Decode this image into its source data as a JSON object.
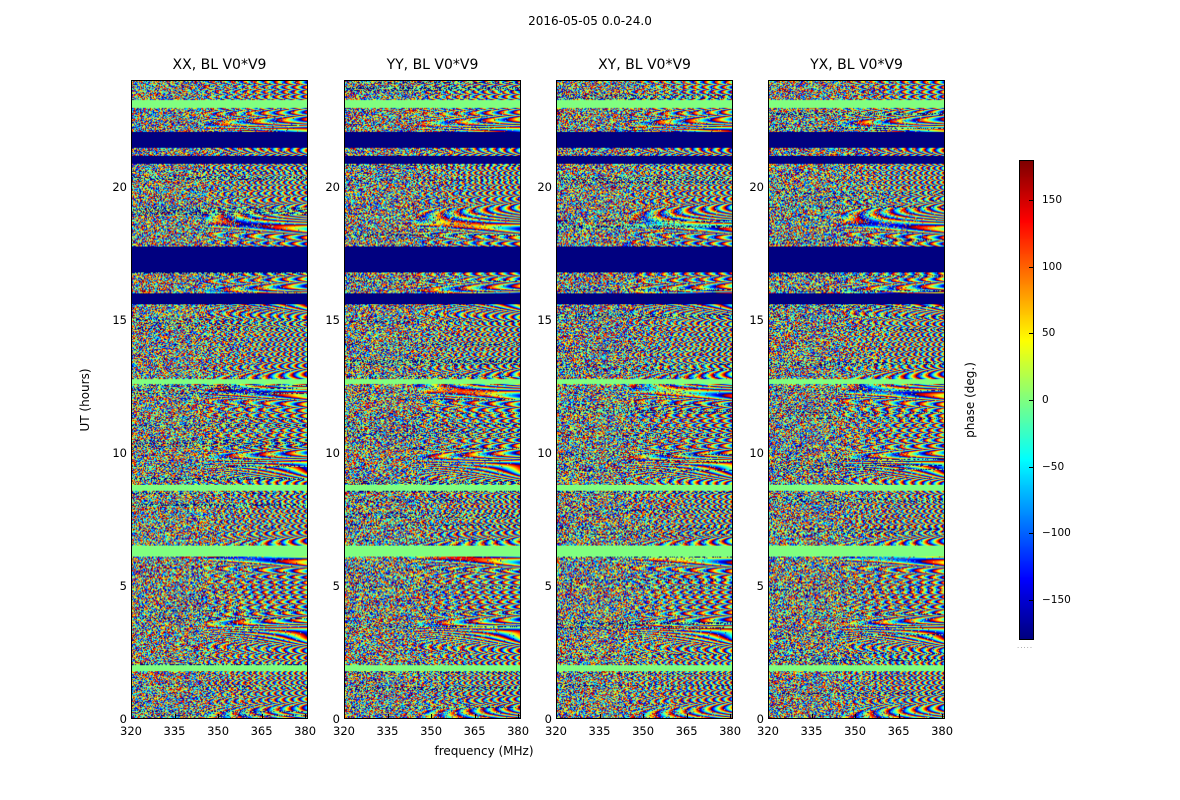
{
  "figure": {
    "suptitle": "2016-05-05 0.0-24.0",
    "colorbar_dots": "....."
  },
  "chart_data": {
    "type": "heatmap",
    "title": "2016-05-05 0.0-24.0",
    "xlabel": "frequency (MHz)",
    "ylabel": "UT (hours)",
    "xlim": [
      320,
      381
    ],
    "ylim": [
      0,
      24
    ],
    "x_ticks": [
      320,
      335,
      350,
      365,
      380
    ],
    "y_ticks": [
      0,
      5,
      10,
      15,
      20
    ],
    "colormap": "jet",
    "colorbar": {
      "label": "phase (deg.)",
      "range": [
        -180,
        180
      ],
      "ticks": [
        150,
        100,
        50,
        0,
        -50,
        -100,
        -150
      ],
      "tick_labels": [
        "150",
        "100",
        "50",
        "0",
        "−50",
        "−100",
        "−150"
      ]
    },
    "panels": [
      {
        "title": "XX, BL V0*V9",
        "polarization": "XX"
      },
      {
        "title": "YY, BL V0*V9",
        "polarization": "YY"
      },
      {
        "title": "XY, BL V0*V9",
        "polarization": "XY"
      },
      {
        "title": "YX, BL V0*V9",
        "polarization": "YX"
      }
    ],
    "flagged_intervals_hours": [
      [
        15.6,
        16.0
      ],
      [
        16.8,
        17.8
      ],
      [
        20.9,
        21.2
      ],
      [
        21.5,
        22.1
      ]
    ],
    "zero_phase_bands_hours": [
      [
        1.8,
        2.0
      ],
      [
        6.1,
        6.5
      ],
      [
        8.6,
        8.8
      ],
      [
        12.6,
        12.8
      ],
      [
        23.0,
        23.3
      ]
    ]
  }
}
